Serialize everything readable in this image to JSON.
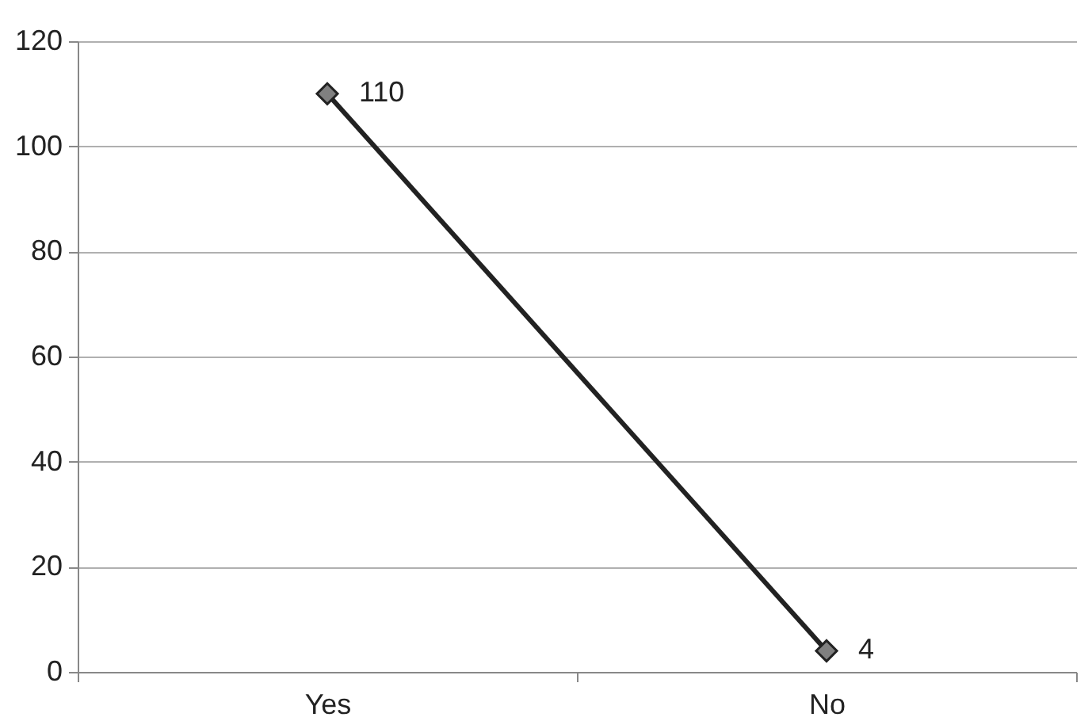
{
  "chart_data": {
    "type": "line",
    "categories": [
      "Yes",
      "No"
    ],
    "series": [
      {
        "color": "#222222",
        "values": [
          110,
          4
        ]
      }
    ],
    "marker": "diamond",
    "line_style": "solid",
    "ylim": [
      0,
      120
    ],
    "yticks": [
      0,
      20,
      40,
      60,
      80,
      100,
      120
    ],
    "grid": "y",
    "data_labels": true
  }
}
